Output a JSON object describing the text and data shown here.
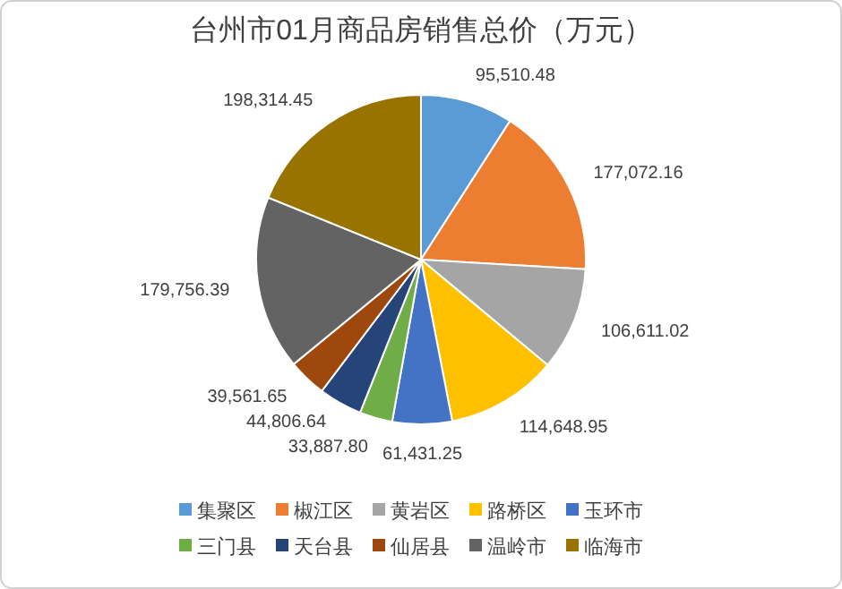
{
  "chart_data": {
    "type": "pie",
    "title": "台州市01月商品房销售总价（万元）",
    "categories": [
      "集聚区",
      "椒江区",
      "黄岩区",
      "路桥区",
      "玉环市",
      "三门县",
      "天台县",
      "仙居县",
      "温岭市",
      "临海市"
    ],
    "values": [
      95510.48,
      177072.16,
      106611.02,
      114648.95,
      61431.25,
      33887.8,
      44806.64,
      39561.65,
      179756.39,
      198314.45
    ],
    "value_labels": [
      "95,510.48",
      "177,072.16",
      "106,611.02",
      "114,648.95",
      "61,431.25",
      "33,887.80",
      "44,806.64",
      "39,561.65",
      "179,756.39",
      "198,314.45"
    ],
    "colors": [
      "#5b9bd5",
      "#ed7d31",
      "#a5a5a5",
      "#ffc000",
      "#4472c4",
      "#70ad47",
      "#264478",
      "#9e480e",
      "#636363",
      "#997300"
    ],
    "legend": "bottom"
  }
}
